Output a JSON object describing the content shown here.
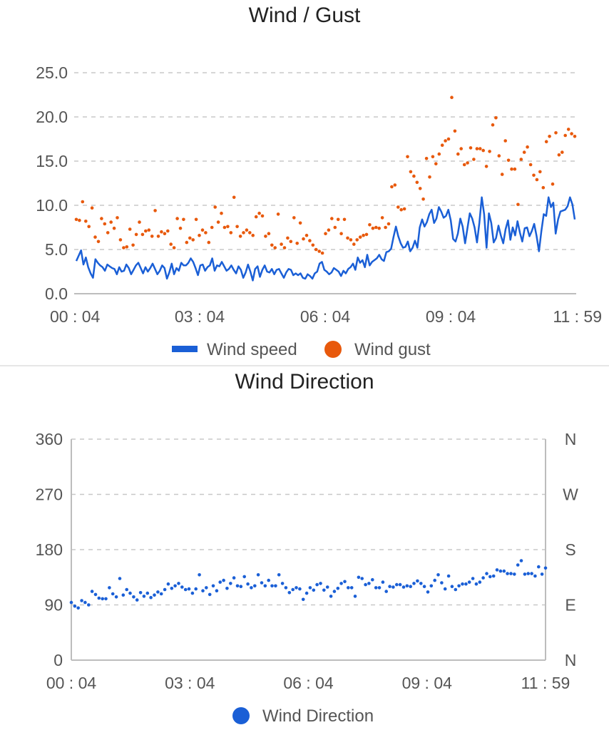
{
  "chart_data": [
    {
      "type": "line",
      "title": "Wind / Gust",
      "x_tick_labels": [
        "00 : 04",
        "03 : 04",
        "06 : 04",
        "09 : 04",
        "11 : 59"
      ],
      "x_range": [
        "00:04",
        "11:59"
      ],
      "y_ticks": [
        "0.0",
        "5.0",
        "10.0",
        "15.0",
        "20.0",
        "25.0"
      ],
      "ylim": [
        0,
        25
      ],
      "grid": true,
      "legend_position": "bottom",
      "series": [
        {
          "name": "Wind speed",
          "style": "line",
          "color": "#1a5fd6",
          "values": [
            3.7,
            4.3,
            4.9,
            3.3,
            4.1,
            3.0,
            2.3,
            1.8,
            3.9,
            3.5,
            3.2,
            3.0,
            2.6,
            3.3,
            3.1,
            2.9,
            2.8,
            2.2,
            3.0,
            2.5,
            2.6,
            3.3,
            2.9,
            2.2,
            2.7,
            3.2,
            3.5,
            2.9,
            2.3,
            3.0,
            2.5,
            2.9,
            3.4,
            2.8,
            2.2,
            2.6,
            3.2,
            2.9,
            1.7,
            2.4,
            3.4,
            2.2,
            2.9,
            2.6,
            3.5,
            3.2,
            3.2,
            3.5,
            4.0,
            3.6,
            2.9,
            2.1,
            3.2,
            3.3,
            2.6,
            3.0,
            3.2,
            4.0,
            2.6,
            3.2,
            3.1,
            3.6,
            3.1,
            2.6,
            2.8,
            3.2,
            2.7,
            2.3,
            3.1,
            2.7,
            1.8,
            2.4,
            3.3,
            2.5,
            1.5,
            2.8,
            3.1,
            1.9,
            2.7,
            3.2,
            2.5,
            2.4,
            2.8,
            2.2,
            2.7,
            2.8,
            2.3,
            1.8,
            2.4,
            2.8,
            2.7,
            2.1,
            2.3,
            2.1,
            2.3,
            1.8,
            1.7,
            2.2,
            2.0,
            1.7,
            2.3,
            2.5,
            3.4,
            3.6,
            2.7,
            2.5,
            2.2,
            2.4,
            2.9,
            2.7,
            2.5,
            2.0,
            2.6,
            2.3,
            2.8,
            3.0,
            3.4,
            2.7,
            4.1,
            3.5,
            3.8,
            3.0,
            4.4,
            3.2,
            3.6,
            3.8,
            4.0,
            4.4,
            3.9,
            3.7,
            4.7,
            4.8,
            5.1,
            6.4,
            7.6,
            6.5,
            5.7,
            5.2,
            5.3,
            5.9,
            4.8,
            5.2,
            6.0,
            5.2,
            7.5,
            8.4,
            7.6,
            8.1,
            9.0,
            9.5,
            8.0,
            8.5,
            9.8,
            9.3,
            8.6,
            8.8,
            9.5,
            8.3,
            6.2,
            5.9,
            6.8,
            8.5,
            7.6,
            5.7,
            7.4,
            9.1,
            8.5,
            7.5,
            5.8,
            8.0,
            10.9,
            9.0,
            5.2,
            9.1,
            8.0,
            5.8,
            6.3,
            7.7,
            6.6,
            5.7,
            7.3,
            8.3,
            6.1,
            7.5,
            6.6,
            8.2,
            6.9,
            5.9,
            7.4,
            7.5,
            6.5,
            7.1,
            7.9,
            6.5,
            4.8,
            7.1,
            9.0,
            8.8,
            10.9,
            9.8,
            10.3,
            6.8,
            8.4,
            9.3,
            9.4,
            9.5,
            9.9,
            10.9,
            10.1,
            8.4
          ]
        },
        {
          "name": "Wind gust",
          "style": "scatter",
          "color": "#e8590c",
          "values": [
            8.4,
            8.3,
            10.4,
            8.2,
            7.6,
            9.7,
            6.4,
            5.9,
            8.5,
            7.9,
            6.9,
            8.1,
            7.4,
            8.6,
            6.1,
            5.2,
            5.3,
            7.3,
            5.5,
            6.7,
            8.1,
            6.7,
            7.1,
            7.2,
            6.5,
            9.4,
            6.5,
            7.0,
            6.8,
            7.1,
            5.6,
            5.2,
            8.5,
            7.4,
            8.4,
            5.8,
            6.3,
            6.1,
            8.4,
            6.6,
            7.2,
            6.9,
            5.8,
            7.5,
            9.8,
            8.1,
            9.1,
            7.5,
            7.6,
            6.9,
            10.9,
            7.6,
            6.5,
            6.9,
            7.2,
            6.9,
            6.6,
            8.7,
            9.1,
            8.8,
            6.5,
            6.8,
            5.5,
            5.2,
            9.0,
            5.6,
            5.2,
            6.3,
            5.9,
            8.6,
            5.7,
            8.0,
            6.2,
            6.6,
            6.0,
            5.5,
            5.0,
            4.8,
            4.6,
            6.8,
            7.2,
            8.5,
            7.5,
            8.4,
            6.8,
            8.4,
            6.3,
            6.1,
            5.6,
            6.1,
            6.4,
            6.6,
            6.7,
            7.8,
            7.4,
            7.5,
            7.4,
            8.6,
            7.5,
            7.9,
            12.1,
            12.3,
            9.8,
            9.5,
            9.6,
            15.5,
            13.8,
            13.3,
            12.6,
            11.9,
            10.7,
            15.3,
            13.2,
            15.5,
            14.7,
            15.8,
            16.8,
            17.3,
            17.5,
            22.2,
            18.4,
            15.8,
            16.4,
            14.6,
            14.8,
            16.5,
            15.2,
            16.4,
            16.4,
            16.2,
            14.4,
            16.1,
            19.1,
            19.9,
            15.6,
            13.5,
            17.3,
            15.1,
            14.1,
            14.1,
            10.1,
            15.2,
            16.0,
            16.6,
            14.6,
            13.4,
            12.9,
            13.8,
            12.0,
            17.2,
            17.8,
            12.4,
            18.2,
            15.7,
            16.0,
            17.9,
            18.6,
            18.1,
            17.8
          ]
        }
      ]
    },
    {
      "type": "scatter",
      "title": "Wind Direction",
      "x_tick_labels": [
        "00 : 04",
        "03 : 04",
        "06 : 04",
        "09 : 04",
        "11 : 59"
      ],
      "x_range": [
        "00:04",
        "11:59"
      ],
      "y_ticks": [
        "0",
        "90",
        "180",
        "270",
        "360"
      ],
      "y2_ticks": [
        "N",
        "E",
        "S",
        "W",
        "N"
      ],
      "ylim": [
        0,
        360
      ],
      "grid": true,
      "legend_position": "bottom",
      "series": [
        {
          "name": "Wind Direction",
          "color": "#1a5fd6",
          "values": [
            94,
            88,
            85,
            97,
            94,
            90,
            112,
            107,
            101,
            100,
            100,
            118,
            108,
            103,
            133,
            106,
            115,
            109,
            103,
            98,
            110,
            104,
            109,
            102,
            106,
            111,
            108,
            115,
            124,
            117,
            121,
            125,
            119,
            115,
            116,
            109,
            116,
            139,
            113,
            118,
            107,
            121,
            113,
            127,
            130,
            117,
            125,
            134,
            121,
            120,
            136,
            124,
            118,
            121,
            139,
            126,
            121,
            130,
            121,
            121,
            139,
            125,
            118,
            110,
            115,
            118,
            116,
            99,
            109,
            118,
            114,
            123,
            125,
            114,
            119,
            104,
            112,
            117,
            125,
            128,
            118,
            118,
            104,
            135,
            133,
            123,
            125,
            131,
            118,
            118,
            127,
            112,
            120,
            119,
            123,
            123,
            119,
            121,
            120,
            125,
            129,
            125,
            120,
            111,
            121,
            130,
            139,
            126,
            116,
            137,
            120,
            115,
            121,
            124,
            124,
            127,
            133,
            124,
            127,
            134,
            141,
            136,
            137,
            147,
            145,
            145,
            141,
            141,
            140,
            155,
            162,
            140,
            141,
            141,
            137,
            152,
            140,
            150
          ]
        }
      ]
    }
  ]
}
